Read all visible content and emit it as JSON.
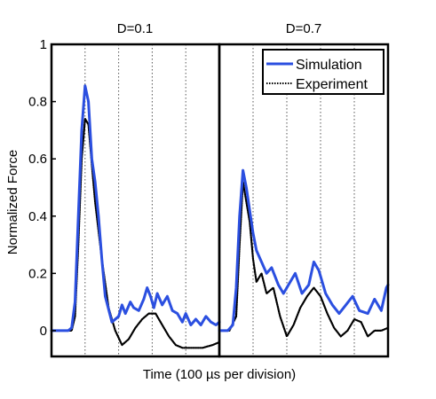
{
  "chart_data": {
    "type": "line",
    "ylabel": "Normalized Force",
    "xlabel": "Time (100 µs per division)",
    "ylim": [
      -0.09,
      1.0
    ],
    "yticks": [
      0,
      0.2,
      0.4,
      0.6,
      0.8,
      1
    ],
    "ytick_labels": [
      "0",
      "0.2",
      "0.4",
      "0.6",
      "0.8",
      "1"
    ],
    "xlim": [
      0,
      5
    ],
    "grid": "vertical dotted lines, one per division",
    "legend_placement": "top-right of right panel",
    "legend": [
      "Simulation",
      "Experiment"
    ],
    "colors": {
      "Simulation": "#2b4fe0",
      "Experiment": "#000000"
    },
    "panels": [
      {
        "title": "D=0.1",
        "series": [
          {
            "name": "Simulation",
            "x": [
              0,
              0.5,
              0.6,
              0.7,
              0.8,
              0.9,
              1.0,
              1.1,
              1.2,
              1.3,
              1.4,
              1.5,
              1.6,
              1.8,
              2.0,
              2.1,
              2.2,
              2.35,
              2.45,
              2.6,
              2.75,
              2.85,
              2.95,
              3.05,
              3.15,
              3.3,
              3.45,
              3.6,
              3.75,
              3.9,
              4.0,
              4.15,
              4.3,
              4.45,
              4.6,
              4.75,
              4.9,
              5.0
            ],
            "y": [
              0.0,
              0.0,
              0.01,
              0.1,
              0.4,
              0.7,
              0.855,
              0.8,
              0.6,
              0.52,
              0.4,
              0.25,
              0.12,
              0.03,
              0.05,
              0.09,
              0.06,
              0.1,
              0.08,
              0.07,
              0.11,
              0.15,
              0.12,
              0.08,
              0.13,
              0.09,
              0.12,
              0.07,
              0.06,
              0.03,
              0.06,
              0.02,
              0.04,
              0.02,
              0.05,
              0.03,
              0.02,
              0.03
            ]
          },
          {
            "name": "Experiment",
            "x": [
              0,
              0.6,
              0.7,
              0.8,
              0.9,
              1.0,
              1.1,
              1.2,
              1.3,
              1.5,
              1.7,
              1.9,
              2.1,
              2.3,
              2.5,
              2.7,
              2.9,
              3.1,
              3.3,
              3.5,
              3.7,
              3.9,
              4.2,
              4.5,
              4.8,
              5.0
            ],
            "y": [
              0.0,
              0.0,
              0.05,
              0.3,
              0.6,
              0.74,
              0.72,
              0.58,
              0.45,
              0.25,
              0.08,
              0.0,
              -0.05,
              -0.03,
              0.01,
              0.04,
              0.06,
              0.06,
              0.02,
              -0.02,
              -0.05,
              -0.06,
              -0.06,
              -0.06,
              -0.05,
              -0.04
            ]
          }
        ]
      },
      {
        "title": "D=0.7",
        "series": [
          {
            "name": "Simulation",
            "x": [
              0,
              0.25,
              0.4,
              0.5,
              0.6,
              0.7,
              0.8,
              0.9,
              1.0,
              1.1,
              1.25,
              1.4,
              1.55,
              1.75,
              1.9,
              2.05,
              2.25,
              2.45,
              2.65,
              2.8,
              2.95,
              3.15,
              3.35,
              3.55,
              3.75,
              3.95,
              4.15,
              4.4,
              4.6,
              4.8,
              4.95,
              5.0
            ],
            "y": [
              0.0,
              0.0,
              0.02,
              0.15,
              0.4,
              0.56,
              0.5,
              0.42,
              0.34,
              0.28,
              0.24,
              0.2,
              0.22,
              0.16,
              0.13,
              0.16,
              0.2,
              0.13,
              0.16,
              0.24,
              0.21,
              0.13,
              0.09,
              0.06,
              0.09,
              0.12,
              0.07,
              0.06,
              0.11,
              0.07,
              0.15,
              0.16
            ]
          },
          {
            "name": "Experiment",
            "x": [
              0,
              0.3,
              0.5,
              0.6,
              0.7,
              0.8,
              0.9,
              1.0,
              1.1,
              1.25,
              1.4,
              1.6,
              1.8,
              2.0,
              2.2,
              2.4,
              2.6,
              2.8,
              3.0,
              3.2,
              3.4,
              3.6,
              3.8,
              3.9,
              4.0,
              4.2,
              4.4,
              4.6,
              4.8,
              5.0
            ],
            "y": [
              0.0,
              0.0,
              0.05,
              0.3,
              0.52,
              0.45,
              0.38,
              0.25,
              0.17,
              0.2,
              0.13,
              0.15,
              0.05,
              -0.02,
              0.02,
              0.08,
              0.12,
              0.15,
              0.12,
              0.06,
              0.01,
              -0.02,
              0.0,
              0.02,
              0.04,
              0.03,
              -0.02,
              0.0,
              0.0,
              0.01
            ]
          }
        ]
      }
    ]
  }
}
